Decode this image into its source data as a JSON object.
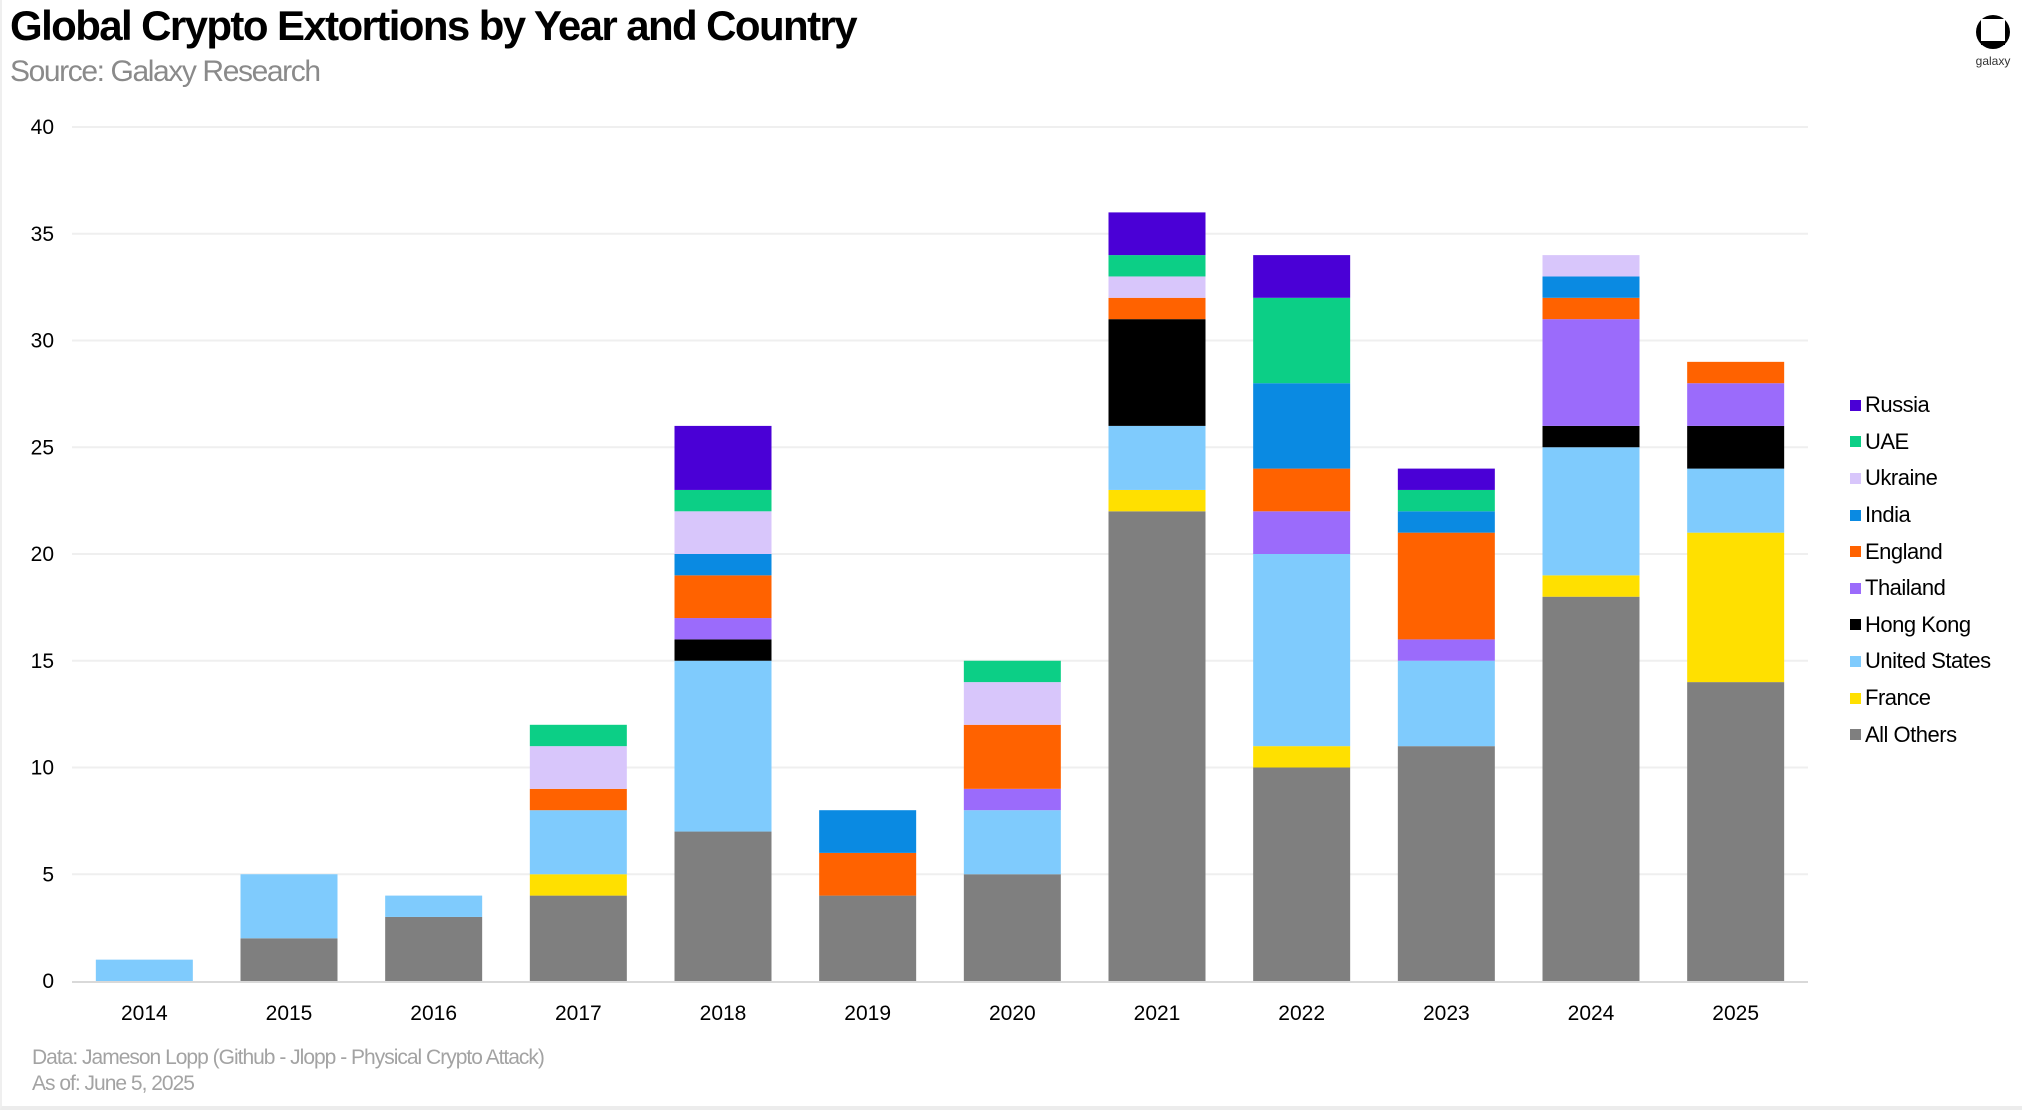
{
  "header": {
    "title": "Global Crypto Extortions by Year and Country",
    "subtitle": "Source: Galaxy Research",
    "logo_text": "galaxy",
    "logo_icon": "galaxy-logo-icon"
  },
  "footer": {
    "data_note": "Data: Jameson Lopp (Github - Jlopp - Physical Crypto Attack)",
    "as_of": "As of: June 5, 2025"
  },
  "chart_data": {
    "type": "bar",
    "stacked": true,
    "title": "Global Crypto Extortions by Year and Country",
    "subtitle": "Source: Galaxy Research",
    "xlabel": "",
    "ylabel": "",
    "ylim": [
      0,
      40
    ],
    "yticks": [
      0,
      5,
      10,
      15,
      20,
      25,
      30,
      35,
      40
    ],
    "grid": true,
    "legend_position": "right",
    "categories": [
      "2014",
      "2015",
      "2016",
      "2017",
      "2018",
      "2019",
      "2020",
      "2021",
      "2022",
      "2023",
      "2024",
      "2025"
    ],
    "series": [
      {
        "name": "All Others",
        "color": "#7f7f7f",
        "values": [
          0,
          2,
          3,
          4,
          7,
          4,
          5,
          22,
          10,
          11,
          18,
          14
        ]
      },
      {
        "name": "France",
        "color": "#ffe000",
        "values": [
          0,
          0,
          0,
          1,
          0,
          0,
          0,
          1,
          1,
          0,
          1,
          7
        ]
      },
      {
        "name": "United States",
        "color": "#7fcbfd",
        "values": [
          1,
          3,
          1,
          3,
          8,
          0,
          3,
          3,
          9,
          4,
          6,
          3
        ]
      },
      {
        "name": "Hong Kong",
        "color": "#000000",
        "values": [
          0,
          0,
          0,
          0,
          1,
          0,
          0,
          5,
          0,
          0,
          1,
          2
        ]
      },
      {
        "name": "Thailand",
        "color": "#9b6bfb",
        "values": [
          0,
          0,
          0,
          0,
          1,
          0,
          1,
          0,
          2,
          1,
          5,
          2
        ]
      },
      {
        "name": "England",
        "color": "#ff6200",
        "values": [
          0,
          0,
          0,
          1,
          2,
          2,
          3,
          1,
          2,
          5,
          1,
          1
        ]
      },
      {
        "name": "India",
        "color": "#0a8ae2",
        "values": [
          0,
          0,
          0,
          0,
          1,
          2,
          0,
          0,
          4,
          1,
          1,
          0
        ]
      },
      {
        "name": "Ukraine",
        "color": "#d8c6fb",
        "values": [
          0,
          0,
          0,
          2,
          2,
          0,
          2,
          1,
          0,
          0,
          1,
          0
        ]
      },
      {
        "name": "UAE",
        "color": "#0ccf86",
        "values": [
          0,
          0,
          0,
          1,
          1,
          0,
          1,
          1,
          4,
          1,
          0,
          0
        ]
      },
      {
        "name": "Russia",
        "color": "#4a00d6",
        "values": [
          0,
          0,
          0,
          0,
          3,
          0,
          0,
          2,
          2,
          1,
          0,
          0
        ]
      }
    ],
    "legend_order": [
      "Russia",
      "UAE",
      "Ukraine",
      "India",
      "England",
      "Thailand",
      "Hong Kong",
      "United States",
      "France",
      "All Others"
    ],
    "totals": [
      1,
      5,
      4,
      12,
      26,
      8,
      15,
      36,
      34,
      24,
      34,
      29
    ]
  }
}
